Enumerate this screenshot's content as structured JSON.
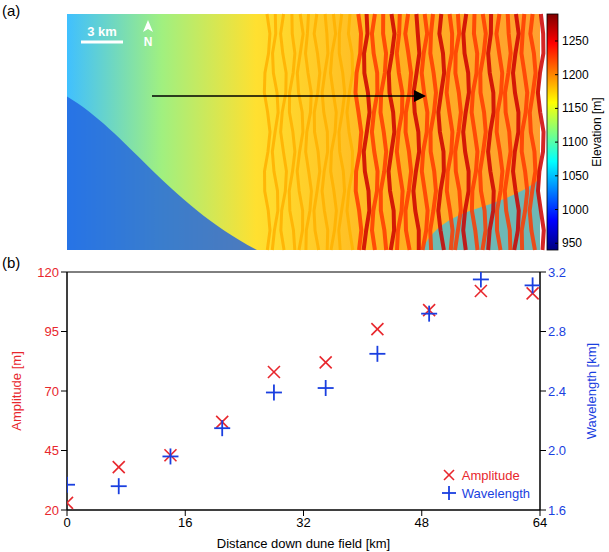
{
  "chart_data": [
    {
      "type": "heatmap",
      "label": "(a)",
      "annotations": [
        "3 km",
        "N"
      ],
      "colorbar": {
        "label": "Elevation [m]",
        "range": [
          940,
          1290
        ],
        "ticks": [
          950,
          1000,
          1050,
          1100,
          1150,
          1200,
          1250
        ]
      }
    },
    {
      "type": "scatter",
      "label": "(b)",
      "xlabel": "Distance down dune field [km]",
      "ylabel": "Amplitude [m]",
      "y2label": "Wavelength [km]",
      "x": [
        0,
        7,
        14,
        21,
        28,
        35,
        42,
        49,
        56,
        63
      ],
      "xlim": [
        0,
        64
      ],
      "xticks": [
        0,
        16,
        32,
        48,
        64
      ],
      "ylim": [
        20,
        120
      ],
      "yticks": [
        20,
        45,
        70,
        95,
        120
      ],
      "y2lim": [
        1.6,
        3.2
      ],
      "y2ticks": [
        1.6,
        {
          "value": 2,
          "label": "2.0"
        },
        2.4,
        2.8,
        3.2
      ],
      "legend": "lower right",
      "series": [
        {
          "name": "Amplitude",
          "color": "#e8272d",
          "marker": "x",
          "values": [
            23,
            38,
            43,
            57,
            78,
            82,
            96,
            104,
            112,
            111
          ]
        },
        {
          "name": "Wavelength",
          "color": "#1a3fe0",
          "marker": "+",
          "axis": "y2",
          "values": [
            1.77,
            1.76,
            1.96,
            2.15,
            2.39,
            2.42,
            2.65,
            2.92,
            3.15,
            3.11
          ]
        }
      ]
    }
  ]
}
